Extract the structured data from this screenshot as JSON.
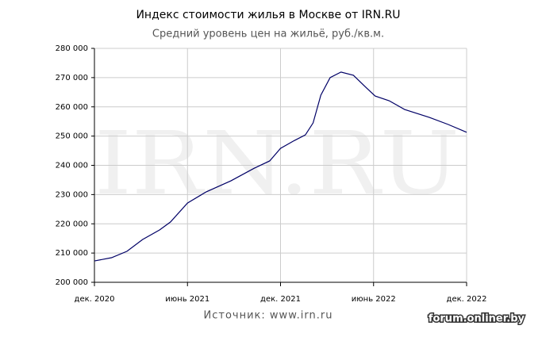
{
  "chart_data": {
    "type": "line",
    "title": "Индекс стоимости жилья в Москве от IRN.RU",
    "subtitle": "Средний уровень цен на жильё, руб./кв.м.",
    "watermark": "IRN.RU",
    "source": "Источник: www.irn.ru",
    "credit": "forum.onliner.by",
    "x": [
      0,
      1.1,
      2.1,
      3.1,
      4.2,
      4.9,
      6,
      7.2,
      8.8,
      10.3,
      11.3,
      12,
      12.9,
      13.6,
      14.1,
      14.6,
      15.2,
      15.9,
      16.7,
      17.5,
      18.1,
      19,
      20,
      21.6,
      22.8,
      24
    ],
    "series": [
      {
        "color": "#000066",
        "values": [
          207300,
          208400,
          210600,
          214600,
          217900,
          220600,
          227100,
          230900,
          234700,
          239000,
          241500,
          245800,
          248500,
          250400,
          254500,
          264000,
          270000,
          271900,
          270800,
          266700,
          263700,
          262100,
          259100,
          256400,
          254000,
          251300
        ]
      }
    ],
    "xlim": [
      0,
      24
    ],
    "xticks": [
      {
        "value": 0,
        "label": "дек. 2020"
      },
      {
        "value": 6,
        "label": "июнь 2021"
      },
      {
        "value": 12,
        "label": "дек. 2021"
      },
      {
        "value": 18,
        "label": "июнь 2022"
      },
      {
        "value": 24,
        "label": "дек. 2022"
      }
    ],
    "ylim": [
      200000,
      280000
    ],
    "yticks": [
      {
        "value": 200000,
        "label": "200 000"
      },
      {
        "value": 210000,
        "label": "210 000"
      },
      {
        "value": 220000,
        "label": "220 000"
      },
      {
        "value": 230000,
        "label": "230 000"
      },
      {
        "value": 240000,
        "label": "240 000"
      },
      {
        "value": 250000,
        "label": "250 000"
      },
      {
        "value": 260000,
        "label": "260 000"
      },
      {
        "value": 270000,
        "label": "270 000"
      },
      {
        "value": 280000,
        "label": "280 000"
      }
    ],
    "grid": true
  }
}
